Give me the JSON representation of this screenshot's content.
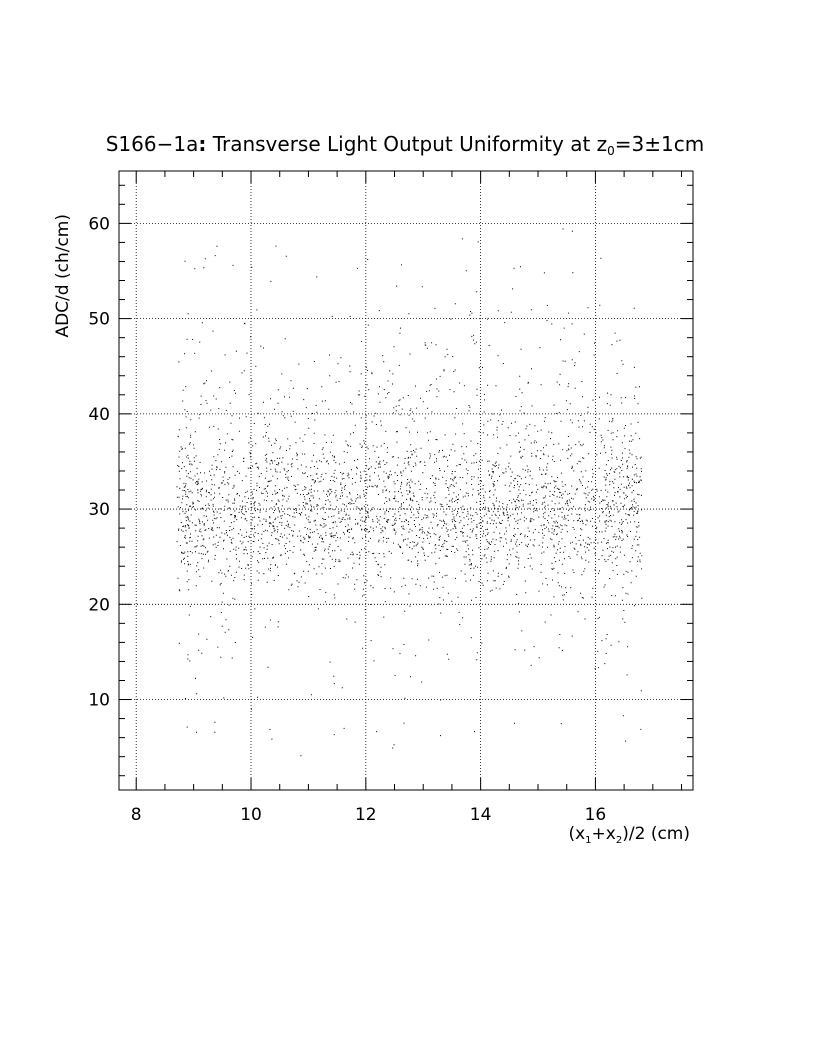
{
  "chart_data": {
    "type": "scatter",
    "title": {
      "prefix": "S166−1a",
      "colon": ":",
      "main": " Transverse Light Output Uniformity at z",
      "sub": "0",
      "suffix": "=3±1cm"
    },
    "xlabel": {
      "a": "(x",
      "s1": "1",
      "b": "+x",
      "s2": "2",
      "c": ")/2 (cm)"
    },
    "ylabel": "ADC/d (ch/cm)",
    "xlim": [
      7.7,
      17.7
    ],
    "ylim": [
      0.5,
      65.5
    ],
    "x_ticks": [
      8,
      10,
      12,
      14,
      16
    ],
    "x_tick_labels": [
      "8",
      "10",
      "12",
      "14",
      "16"
    ],
    "y_ticks": [
      10,
      20,
      30,
      40,
      50,
      60
    ],
    "y_tick_labels": [
      "10",
      "20",
      "30",
      "40",
      "50",
      "60"
    ],
    "grid": true,
    "grid_style": "dotted",
    "point_color": "#000000",
    "distribution": {
      "x_range": [
        8.7,
        16.8
      ],
      "core_y_center": 29.5,
      "core_y_spread": 3.5,
      "y_range": [
        4,
        60
      ],
      "point_count": 16000
    }
  }
}
